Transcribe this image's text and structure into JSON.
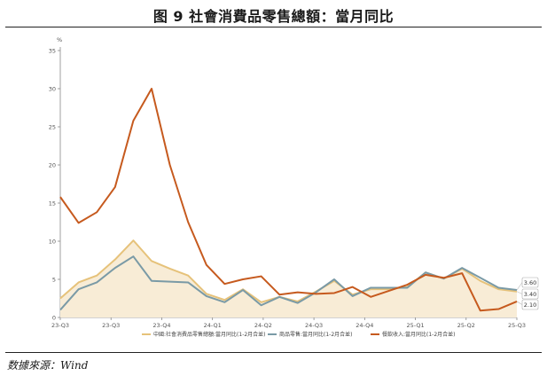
{
  "title": "图 9 社會消費品零售總額：當月同比",
  "source": "数據來源：Wind",
  "chart_data": {
    "type": "line",
    "unit_label": "%",
    "ylim": [
      0,
      35
    ],
    "yticks": [
      0,
      5,
      10,
      15,
      20,
      25,
      30,
      35
    ],
    "x_ticks": [
      "23-Q3",
      "23-Q3",
      "23-Q4",
      "24-Q1",
      "24-Q2",
      "24-Q3",
      "24-Q4",
      "25-Q1",
      "25-Q2",
      "25-Q3"
    ],
    "grid": false,
    "legend_position": "bottom",
    "series": [
      {
        "name": "中國:社會消費品零售總額:當月同比(1-2月合並)",
        "color": "#e6c27a",
        "fill": "#f8ecd6",
        "values": [
          2.5,
          4.6,
          5.5,
          7.6,
          10.1,
          7.4,
          6.4,
          5.5,
          3.1,
          2.3,
          3.7,
          2.0,
          2.7,
          2.1,
          3.4,
          4.8,
          3.0,
          3.7,
          3.7,
          4.0,
          5.9,
          5.1,
          6.4,
          4.8,
          3.7,
          3.4
        ],
        "end_label": "3.40"
      },
      {
        "name": "商品零售:當月同比(1-2月合並)",
        "color": "#7a9aa6",
        "fill": null,
        "values": [
          1.0,
          3.7,
          4.6,
          6.5,
          8.0,
          4.8,
          4.7,
          4.6,
          2.8,
          2.0,
          3.6,
          1.6,
          2.7,
          1.9,
          3.3,
          5.0,
          2.8,
          3.9,
          3.9,
          3.9,
          5.9,
          5.1,
          6.5,
          5.2,
          3.9,
          3.6
        ],
        "end_label": "3.60"
      },
      {
        "name": "餐飲收入:當月同比(1-2月合並)",
        "color": "#c65a1e",
        "fill": null,
        "values": [
          15.8,
          12.4,
          13.8,
          17.1,
          25.8,
          30.0,
          20.0,
          12.5,
          6.9,
          4.4,
          5.0,
          5.4,
          3.0,
          3.3,
          3.1,
          3.2,
          4.0,
          2.7,
          3.5,
          4.3,
          5.6,
          5.2,
          5.8,
          0.9,
          1.1,
          2.1
        ],
        "end_label": "2.10"
      }
    ]
  }
}
